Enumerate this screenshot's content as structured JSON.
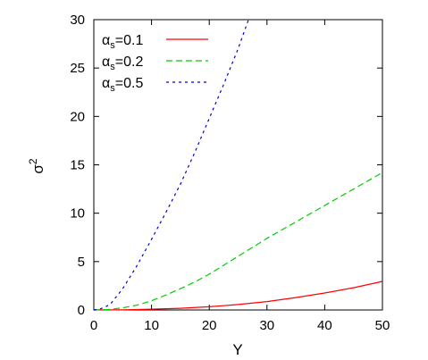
{
  "chart_data": {
    "type": "line",
    "xlabel": "Y",
    "ylabel_base": "σ",
    "ylabel_sup": "2",
    "xlim": [
      0,
      50
    ],
    "ylim": [
      0,
      30
    ],
    "x_ticks": [
      0,
      10,
      20,
      30,
      40,
      50
    ],
    "y_ticks": [
      0,
      5,
      10,
      15,
      20,
      25,
      30
    ],
    "grid": false,
    "legend_position": "top-left",
    "series": [
      {
        "name_symbol": "α",
        "name_sub": "s",
        "name_suffix": "=0.1",
        "color": "#ff0000",
        "dash": "solid",
        "x": [
          0,
          5,
          10,
          15,
          20,
          25,
          30,
          35,
          40,
          45,
          50
        ],
        "y": [
          0,
          0.02,
          0.08,
          0.18,
          0.33,
          0.56,
          0.87,
          1.28,
          1.75,
          2.3,
          2.95
        ]
      },
      {
        "name_symbol": "α",
        "name_sub": "s",
        "name_suffix": "=0.2",
        "color": "#00cc00",
        "dash": "long-dash",
        "x": [
          0,
          2.5,
          5,
          7.5,
          10,
          12.5,
          15,
          17.5,
          20,
          25,
          30,
          35,
          40,
          45,
          50
        ],
        "y": [
          0,
          0.05,
          0.22,
          0.5,
          0.95,
          1.55,
          2.2,
          2.9,
          3.7,
          5.55,
          7.4,
          9.1,
          10.8,
          12.5,
          14.2
        ]
      },
      {
        "name_symbol": "α",
        "name_sub": "s",
        "name_suffix": "=0.5",
        "color": "#0000cc",
        "dash": "short-dash",
        "x": [
          0,
          1,
          2,
          3,
          5,
          7.5,
          10,
          12.5,
          15,
          17.5,
          20,
          22.5,
          25,
          26.8
        ],
        "y": [
          0,
          0.1,
          0.3,
          0.7,
          2.2,
          4.6,
          7.3,
          10.1,
          13.0,
          16.3,
          19.8,
          23.3,
          27.0,
          30
        ]
      }
    ]
  }
}
